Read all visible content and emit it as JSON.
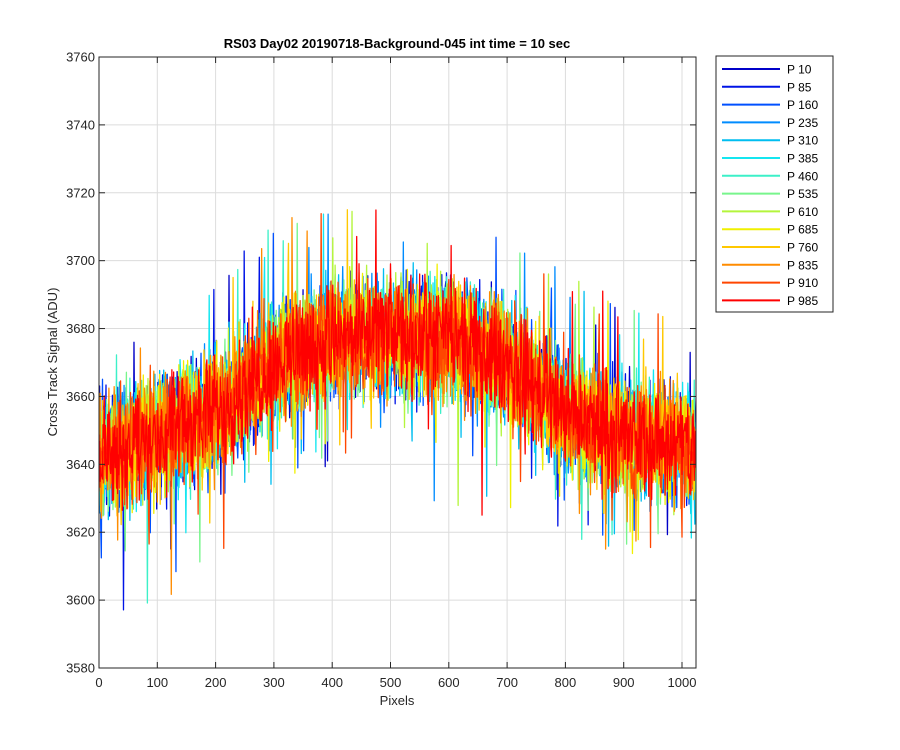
{
  "chart_data": {
    "type": "line",
    "title": "RS03 Day02 20190718-Background-045 int time = 10 sec",
    "xlabel": "Pixels",
    "ylabel": "Cross Track Signal (ADU)",
    "xlim": [
      0,
      1024
    ],
    "ylim": [
      3580,
      3760
    ],
    "xticks": [
      0,
      100,
      200,
      300,
      400,
      500,
      600,
      700,
      800,
      900,
      1000
    ],
    "yticks": [
      3580,
      3600,
      3620,
      3640,
      3660,
      3680,
      3700,
      3720,
      3740,
      3760
    ],
    "grid": true,
    "legend_position": "outside-top-right",
    "profile": {
      "description": "noisy arched baseline shared by all series",
      "x": [
        0,
        100,
        200,
        300,
        400,
        500,
        600,
        700,
        800,
        900,
        1024
      ],
      "y": [
        3643,
        3648,
        3655,
        3670,
        3677,
        3678,
        3677,
        3670,
        3655,
        3648,
        3645
      ],
      "noise_amplitude": 18
    },
    "series": [
      {
        "name": "P 10",
        "color": "#0000c8"
      },
      {
        "name": "P 85",
        "color": "#0014e6"
      },
      {
        "name": "P 160",
        "color": "#0050ff"
      },
      {
        "name": "P 235",
        "color": "#008cff"
      },
      {
        "name": "P 310",
        "color": "#00bef0"
      },
      {
        "name": "P 385",
        "color": "#14e6f0"
      },
      {
        "name": "P 460",
        "color": "#3cf0c8"
      },
      {
        "name": "P 535",
        "color": "#78f58c"
      },
      {
        "name": "P 610",
        "color": "#b4f53c"
      },
      {
        "name": "P 685",
        "color": "#f0f000"
      },
      {
        "name": "P 760",
        "color": "#ffc800"
      },
      {
        "name": "P 835",
        "color": "#ff8c00"
      },
      {
        "name": "P 910",
        "color": "#ff4600"
      },
      {
        "name": "P 985",
        "color": "#ff0000"
      }
    ]
  }
}
